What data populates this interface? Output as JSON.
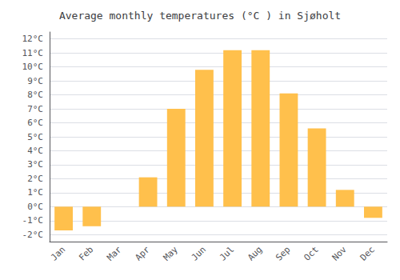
{
  "chart_data": {
    "type": "bar",
    "title": "Average monthly temperatures (°C ) in Sjøholt",
    "categories": [
      "Jan",
      "Feb",
      "Mar",
      "Apr",
      "May",
      "Jun",
      "Jul",
      "Aug",
      "Sep",
      "Oct",
      "Nov",
      "Dec"
    ],
    "values": [
      -1.7,
      -1.4,
      0.0,
      2.1,
      7.0,
      9.8,
      11.2,
      11.2,
      8.1,
      5.6,
      1.2,
      -0.8
    ],
    "color": "#FFC04C",
    "ylim": [
      -2.5,
      12.5
    ],
    "yticks": [
      {
        "value": -2,
        "label": "-2°C"
      },
      {
        "value": -1,
        "label": "-1°C"
      },
      {
        "value": 0,
        "label": "0°C"
      },
      {
        "value": 1,
        "label": "1°C"
      },
      {
        "value": 2,
        "label": "2°C"
      },
      {
        "value": 3,
        "label": "3°C"
      },
      {
        "value": 4,
        "label": "4°C"
      },
      {
        "value": 5,
        "label": "5°C"
      },
      {
        "value": 6,
        "label": "6°C"
      },
      {
        "value": 7,
        "label": "7°C"
      },
      {
        "value": 8,
        "label": "8°C"
      },
      {
        "value": 9,
        "label": "9°C"
      },
      {
        "value": 10,
        "label": "10°C"
      },
      {
        "value": 11,
        "label": "11°C"
      },
      {
        "value": 12,
        "label": "12°C"
      }
    ],
    "grid": true
  }
}
